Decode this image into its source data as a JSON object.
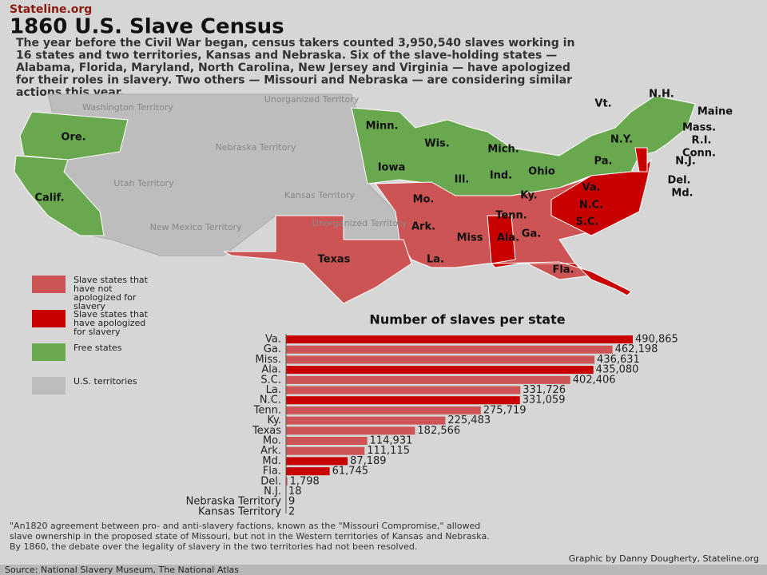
{
  "header": {
    "site": "Stateline.org",
    "title": "1860 U.S. Slave Census",
    "intro": [
      "The year before the Civil War began, census takers counted 3,950,540 slaves working in",
      "16 states and two territories, Kansas and Nebraska. Six of the slave-holding states —",
      "Alabama, Florida, Maryland, North Carolina, New Jersey and Virginia — have apologized",
      "for their roles in slavery.  Two others — Missouri and Nebraska — are considering similar",
      "actions this year."
    ]
  },
  "map": {
    "labels": [
      "Washington Territory",
      "Unorganized Territory",
      "Nebraska Territory",
      "Utah Territory",
      "Kansas Territory",
      "New Mexico Territory",
      "Unorganized Territory",
      "Ore.",
      "Calif.",
      "Minn.",
      "Wis.",
      "Mich.",
      "Iowa",
      "Ill.",
      "Ind.",
      "Ohio",
      "N.Y.",
      "Pa.",
      "Vt.",
      "N.H.",
      "Maine",
      "Mass.",
      "R.I.",
      "Conn.",
      "N.J.",
      "Del.",
      "Md.",
      "Va.",
      "N.C.",
      "S.C.",
      "Ga.",
      "Fla.",
      "Ala.",
      "Miss",
      "Tenn.",
      "Ky.",
      "Mo.",
      "Ark.",
      "La.",
      "Texas"
    ]
  },
  "legend": [
    "Slave states that have not apologized for slavery",
    "Slave states that have apologized for slavery",
    "Free states",
    "U.S. territories"
  ],
  "chart_data": {
    "type": "bar",
    "orientation": "horizontal",
    "title": "Number of slaves per state",
    "categories": [
      "Va.",
      "Ga.",
      "Miss.",
      "Ala.",
      "S.C.",
      "La.",
      "N.C.",
      "Tenn.",
      "Ky.",
      "Texas",
      "Mo.",
      "Ark.",
      "Md.",
      "Fla.",
      "Del.",
      "N.J.",
      "Nebraska Territory",
      "Kansas Territory"
    ],
    "values": [
      490865,
      462198,
      436631,
      435080,
      402406,
      331726,
      331059,
      275719,
      225483,
      182566,
      114931,
      111115,
      87189,
      61745,
      1798,
      18,
      9,
      2
    ],
    "value_labels": [
      "490,865",
      "462,198",
      "436,631",
      "435,080",
      "402,406",
      "331,726",
      "331,059",
      "275,719",
      "225,483",
      "182,566",
      "114,931",
      "111,115",
      "87,189",
      "61,745",
      "1,798",
      "18",
      "9",
      "2"
    ],
    "colors": [
      "#c80000",
      "#cc5454",
      "#cc5454",
      "#c80000",
      "#cc5454",
      "#cc5454",
      "#c80000",
      "#cc5454",
      "#cc5454",
      "#cc5454",
      "#cc5454",
      "#cc5454",
      "#c80000",
      "#c80000",
      "#cc5454",
      "#c80000",
      "#cc5454",
      "#cc5454"
    ]
  },
  "footnote": [
    "\"An1820 agreement between pro- and anti-slavery factions, known as the \"Missouri Compromise,\" allowed",
    "slave ownership in the proposed state of Missouri, but not in the Western territories of Kansas and Nebraska.",
    "By 1860, the debate over the legality of slavery in the two territories had not been resolved."
  ],
  "credit": "Graphic by Danny Dougherty, Stateline.org",
  "source": "Source: National Slavery Museum, The National Atlas"
}
